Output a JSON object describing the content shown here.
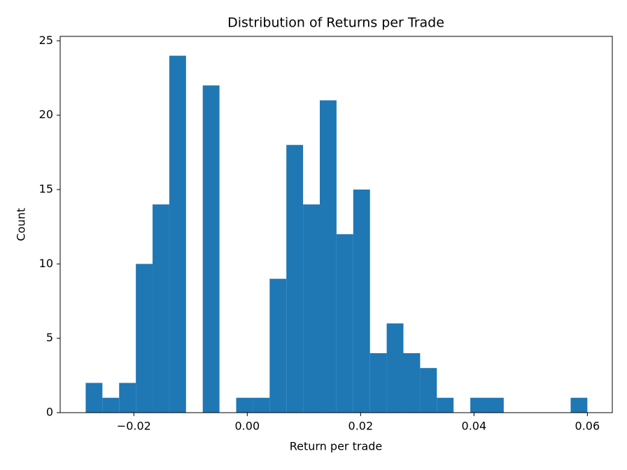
{
  "chart_data": {
    "type": "histogram",
    "title": "Distribution of Returns per Trade",
    "x_label": "Return per trade",
    "y_label": "Count",
    "bins": [
      -0.0285,
      -0.02555,
      -0.0226,
      -0.01965,
      -0.0167,
      -0.01375,
      -0.0108,
      -0.00785,
      -0.0049,
      -0.00195,
      0.001,
      0.00395,
      0.0069,
      0.00985,
      0.0128,
      0.01575,
      0.0187,
      0.02165,
      0.0246,
      0.02755,
      0.0305,
      0.03345,
      0.0364,
      0.03935,
      0.0423,
      0.04525,
      0.0482,
      0.05115,
      0.0541,
      0.05705,
      0.06
    ],
    "counts": [
      2,
      1,
      2,
      10,
      14,
      24,
      0,
      22,
      0,
      1,
      1,
      9,
      18,
      14,
      21,
      12,
      15,
      4,
      6,
      4,
      3,
      1,
      0,
      1,
      1,
      0,
      0,
      0,
      0,
      1
    ],
    "color": "#1f77b4",
    "xlim": [
      -0.033,
      0.0644
    ],
    "ylim": [
      0,
      25.3
    ],
    "xticks": [
      {
        "value": -0.02,
        "label": "−0.02"
      },
      {
        "value": 0,
        "label": "0.00"
      },
      0.02,
      0.04,
      0.06
    ],
    "yticks": [
      0,
      5,
      10,
      15,
      20,
      25
    ],
    "grid": false
  }
}
